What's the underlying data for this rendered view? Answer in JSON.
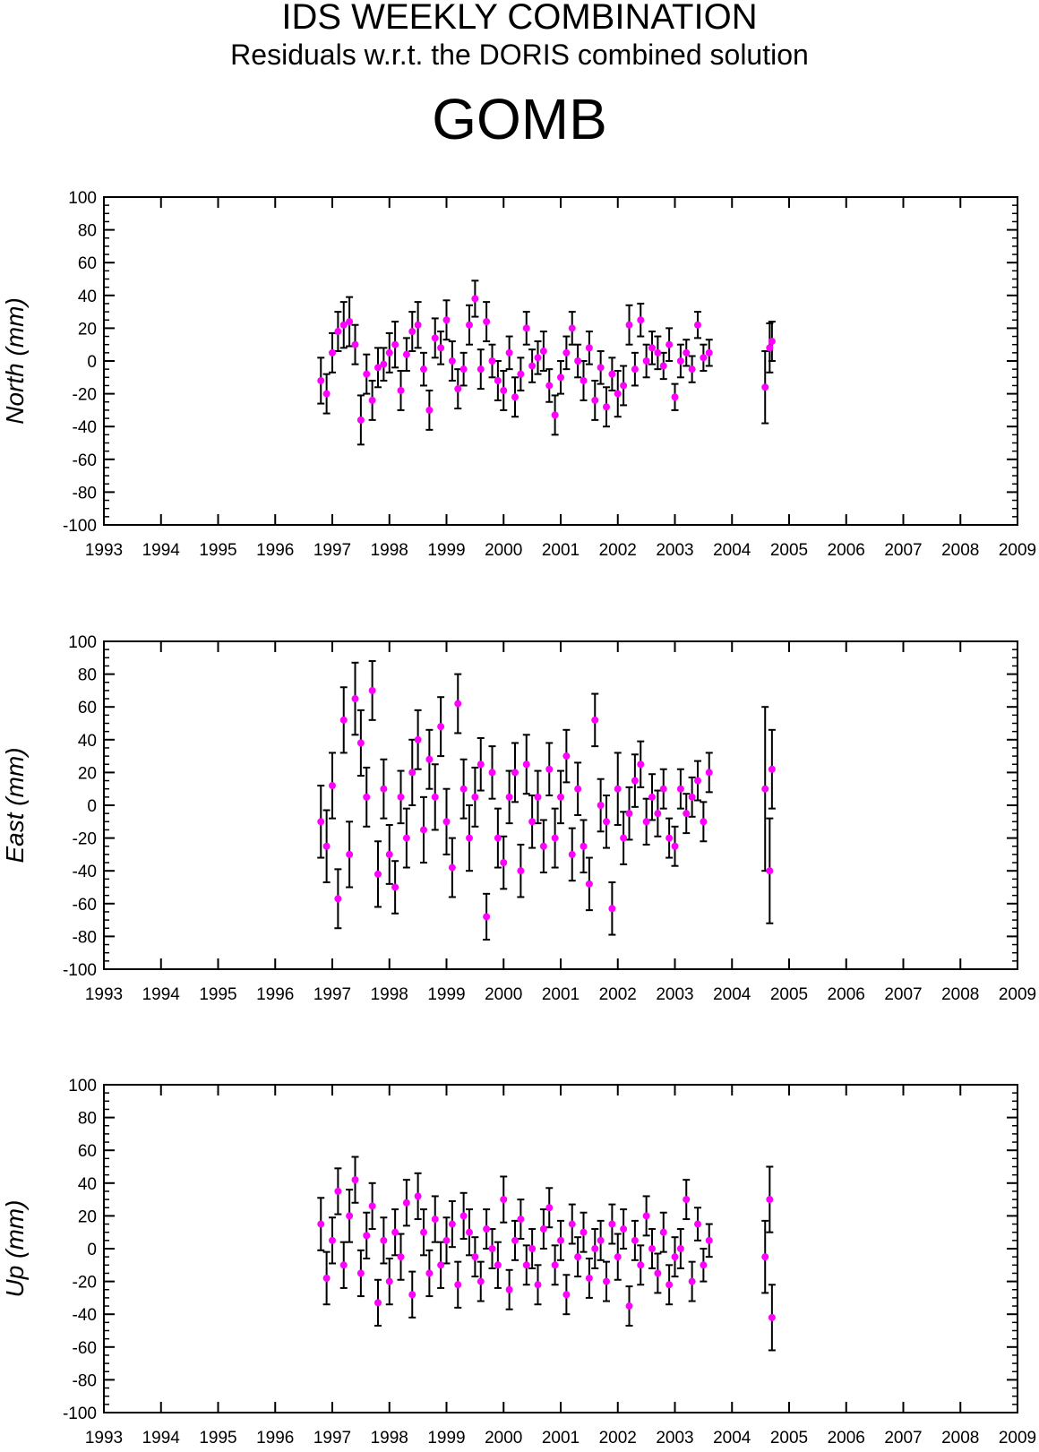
{
  "header": {
    "title": "IDS WEEKLY COMBINATION",
    "subtitle": "Residuals w.r.t. the DORIS combined solution",
    "station": "GOMB"
  },
  "colors": {
    "points": "#ff00ff",
    "error_bars": "#000000",
    "axes": "#000000"
  },
  "chart_data": [
    {
      "type": "scatter",
      "ylabel": "North (mm)",
      "xlim": [
        1993,
        2009
      ],
      "ylim": [
        -100,
        100
      ],
      "x_ticks": [
        "1993",
        "1994",
        "1995",
        "1996",
        "1997",
        "1998",
        "1999",
        "2000",
        "2001",
        "2002",
        "2003",
        "2004",
        "2005",
        "2006",
        "2007",
        "2008",
        "2009"
      ],
      "y_ticks": [
        "100",
        "80",
        "60",
        "40",
        "20",
        "0",
        "-20",
        "-40",
        "-60",
        "-80",
        "-100"
      ],
      "grid": false,
      "error_bars": true,
      "series": [
        {
          "x": [
            1996.8,
            1996.9,
            1997.0,
            1997.1,
            1997.2,
            1997.3,
            1997.4,
            1997.5,
            1997.6,
            1997.7,
            1997.8,
            1997.9,
            1998.0,
            1998.1,
            1998.2,
            1998.3,
            1998.4,
            1998.5,
            1998.6,
            1998.7,
            1998.8,
            1998.9,
            1999.0,
            1999.1,
            1999.2,
            1999.3,
            1999.4,
            1999.5,
            1999.6,
            1999.7,
            1999.8,
            1999.9,
            2000.0,
            2000.1,
            2000.2,
            2000.3,
            2000.4,
            2000.5,
            2000.6,
            2000.7,
            2000.8,
            2000.9,
            2001.0,
            2001.1,
            2001.2,
            2001.3,
            2001.4,
            2001.5,
            2001.6,
            2001.7,
            2001.8,
            2001.9,
            2002.0,
            2002.1,
            2002.2,
            2002.3,
            2002.4,
            2002.5,
            2002.6,
            2002.7,
            2002.8,
            2002.9,
            2003.0,
            2003.1,
            2003.2,
            2003.3,
            2003.4,
            2003.5,
            2003.6,
            2004.58,
            2004.66,
            2004.7
          ],
          "y": [
            -12,
            -20,
            5,
            18,
            22,
            24,
            10,
            -36,
            -8,
            -24,
            -4,
            -2,
            5,
            10,
            -18,
            4,
            18,
            22,
            -5,
            -30,
            14,
            8,
            25,
            0,
            -17,
            -5,
            22,
            38,
            -5,
            24,
            0,
            -12,
            -18,
            5,
            -22,
            -8,
            20,
            -3,
            2,
            6,
            -15,
            -33,
            -10,
            5,
            20,
            0,
            -12,
            8,
            -24,
            -4,
            -28,
            -8,
            -20,
            -15,
            22,
            -5,
            25,
            0,
            8,
            5,
            -3,
            10,
            -22,
            0,
            5,
            -5,
            22,
            2,
            5,
            -16,
            8,
            12
          ],
          "err": [
            14,
            12,
            12,
            12,
            14,
            15,
            12,
            15,
            12,
            12,
            12,
            10,
            12,
            14,
            12,
            10,
            12,
            14,
            10,
            12,
            12,
            10,
            12,
            12,
            12,
            10,
            12,
            11,
            12,
            12,
            10,
            12,
            12,
            10,
            12,
            10,
            10,
            10,
            10,
            12,
            10,
            12,
            10,
            10,
            10,
            10,
            12,
            10,
            12,
            10,
            12,
            10,
            14,
            12,
            12,
            10,
            10,
            10,
            10,
            10,
            8,
            10,
            8,
            10,
            8,
            8,
            8,
            8,
            8,
            22,
            15,
            12
          ]
        }
      ]
    },
    {
      "type": "scatter",
      "ylabel": "East (mm)",
      "xlim": [
        1993,
        2009
      ],
      "ylim": [
        -100,
        100
      ],
      "x_ticks": [
        "1993",
        "1994",
        "1995",
        "1996",
        "1997",
        "1998",
        "1999",
        "2000",
        "2001",
        "2002",
        "2003",
        "2004",
        "2005",
        "2006",
        "2007",
        "2008",
        "2009"
      ],
      "y_ticks": [
        "100",
        "80",
        "60",
        "40",
        "20",
        "0",
        "-20",
        "-40",
        "-60",
        "-80",
        "-100"
      ],
      "grid": false,
      "error_bars": true,
      "series": [
        {
          "x": [
            1996.8,
            1996.9,
            1997.0,
            1997.1,
            1997.2,
            1997.3,
            1997.4,
            1997.5,
            1997.6,
            1997.7,
            1997.8,
            1997.9,
            1998.0,
            1998.1,
            1998.2,
            1998.3,
            1998.4,
            1998.5,
            1998.6,
            1998.7,
            1998.8,
            1998.9,
            1999.0,
            1999.1,
            1999.2,
            1999.3,
            1999.4,
            1999.5,
            1999.6,
            1999.7,
            1999.8,
            1999.9,
            2000.0,
            2000.1,
            2000.2,
            2000.3,
            2000.4,
            2000.5,
            2000.6,
            2000.7,
            2000.8,
            2000.9,
            2001.0,
            2001.1,
            2001.2,
            2001.3,
            2001.4,
            2001.5,
            2001.6,
            2001.7,
            2001.8,
            2001.9,
            2002.0,
            2002.1,
            2002.2,
            2002.3,
            2002.4,
            2002.5,
            2002.6,
            2002.7,
            2002.8,
            2002.9,
            2003.0,
            2003.1,
            2003.2,
            2003.3,
            2003.4,
            2003.5,
            2003.6,
            2004.58,
            2004.66,
            2004.7
          ],
          "y": [
            -10,
            -25,
            12,
            -57,
            52,
            -30,
            65,
            38,
            5,
            70,
            -42,
            10,
            -30,
            -50,
            5,
            -20,
            20,
            40,
            -15,
            28,
            5,
            48,
            -10,
            -38,
            62,
            10,
            -20,
            5,
            25,
            -68,
            20,
            -20,
            -35,
            5,
            20,
            -40,
            25,
            -10,
            5,
            -25,
            22,
            -20,
            5,
            30,
            -30,
            10,
            -25,
            -48,
            52,
            0,
            -10,
            -63,
            10,
            -20,
            -5,
            15,
            25,
            -10,
            5,
            -5,
            10,
            -20,
            -25,
            10,
            -5,
            5,
            15,
            -10,
            20,
            10,
            -40,
            22
          ],
          "err": [
            22,
            22,
            20,
            18,
            20,
            20,
            22,
            20,
            18,
            18,
            20,
            18,
            18,
            16,
            16,
            18,
            20,
            18,
            20,
            18,
            20,
            18,
            20,
            18,
            18,
            18,
            20,
            18,
            16,
            14,
            16,
            18,
            16,
            16,
            18,
            16,
            18,
            16,
            16,
            16,
            16,
            18,
            16,
            16,
            16,
            16,
            16,
            16,
            16,
            16,
            16,
            16,
            22,
            16,
            16,
            16,
            14,
            14,
            14,
            14,
            12,
            12,
            12,
            12,
            12,
            12,
            12,
            12,
            12,
            50,
            32,
            24
          ]
        }
      ]
    },
    {
      "type": "scatter",
      "ylabel": "Up (mm)",
      "xlim": [
        1993,
        2009
      ],
      "ylim": [
        -100,
        100
      ],
      "x_ticks": [
        "1993",
        "1994",
        "1995",
        "1996",
        "1997",
        "1998",
        "1999",
        "2000",
        "2001",
        "2002",
        "2003",
        "2004",
        "2005",
        "2006",
        "2007",
        "2008",
        "2009"
      ],
      "y_ticks": [
        "100",
        "80",
        "60",
        "40",
        "20",
        "0",
        "-20",
        "-40",
        "-60",
        "-80",
        "-100"
      ],
      "grid": false,
      "error_bars": true,
      "series": [
        {
          "x": [
            1996.8,
            1996.9,
            1997.0,
            1997.1,
            1997.2,
            1997.3,
            1997.4,
            1997.5,
            1997.6,
            1997.7,
            1997.8,
            1997.9,
            1998.0,
            1998.1,
            1998.2,
            1998.3,
            1998.4,
            1998.5,
            1998.6,
            1998.7,
            1998.8,
            1998.9,
            1999.0,
            1999.1,
            1999.2,
            1999.3,
            1999.4,
            1999.5,
            1999.6,
            1999.7,
            1999.8,
            1999.9,
            2000.0,
            2000.1,
            2000.2,
            2000.3,
            2000.4,
            2000.5,
            2000.6,
            2000.7,
            2000.8,
            2000.9,
            2001.0,
            2001.1,
            2001.2,
            2001.3,
            2001.4,
            2001.5,
            2001.6,
            2001.7,
            2001.8,
            2001.9,
            2002.0,
            2002.1,
            2002.2,
            2002.3,
            2002.4,
            2002.5,
            2002.6,
            2002.7,
            2002.8,
            2002.9,
            2003.0,
            2003.1,
            2003.2,
            2003.3,
            2003.4,
            2003.5,
            2003.6,
            2004.58,
            2004.66,
            2004.7
          ],
          "y": [
            15,
            -18,
            5,
            35,
            -10,
            20,
            42,
            -15,
            8,
            26,
            -33,
            5,
            -20,
            10,
            -5,
            28,
            -28,
            32,
            10,
            -15,
            18,
            -10,
            5,
            15,
            -22,
            20,
            10,
            -5,
            -20,
            12,
            0,
            -10,
            30,
            -25,
            5,
            18,
            -10,
            0,
            -22,
            12,
            25,
            -10,
            5,
            -28,
            15,
            -5,
            10,
            -18,
            0,
            5,
            -20,
            15,
            -5,
            12,
            -35,
            5,
            -10,
            20,
            0,
            -15,
            10,
            -22,
            -5,
            0,
            30,
            -20,
            15,
            -10,
            5,
            -5,
            30,
            -42
          ],
          "err": [
            16,
            16,
            14,
            14,
            14,
            16,
            14,
            14,
            14,
            14,
            14,
            14,
            14,
            14,
            14,
            14,
            14,
            14,
            14,
            14,
            14,
            14,
            14,
            14,
            14,
            14,
            14,
            12,
            12,
            12,
            12,
            14,
            14,
            12,
            12,
            12,
            12,
            12,
            12,
            12,
            12,
            12,
            12,
            12,
            12,
            12,
            12,
            12,
            12,
            12,
            12,
            12,
            14,
            12,
            12,
            12,
            12,
            12,
            12,
            12,
            12,
            12,
            12,
            12,
            12,
            12,
            10,
            10,
            10,
            22,
            20,
            20
          ]
        }
      ]
    }
  ]
}
